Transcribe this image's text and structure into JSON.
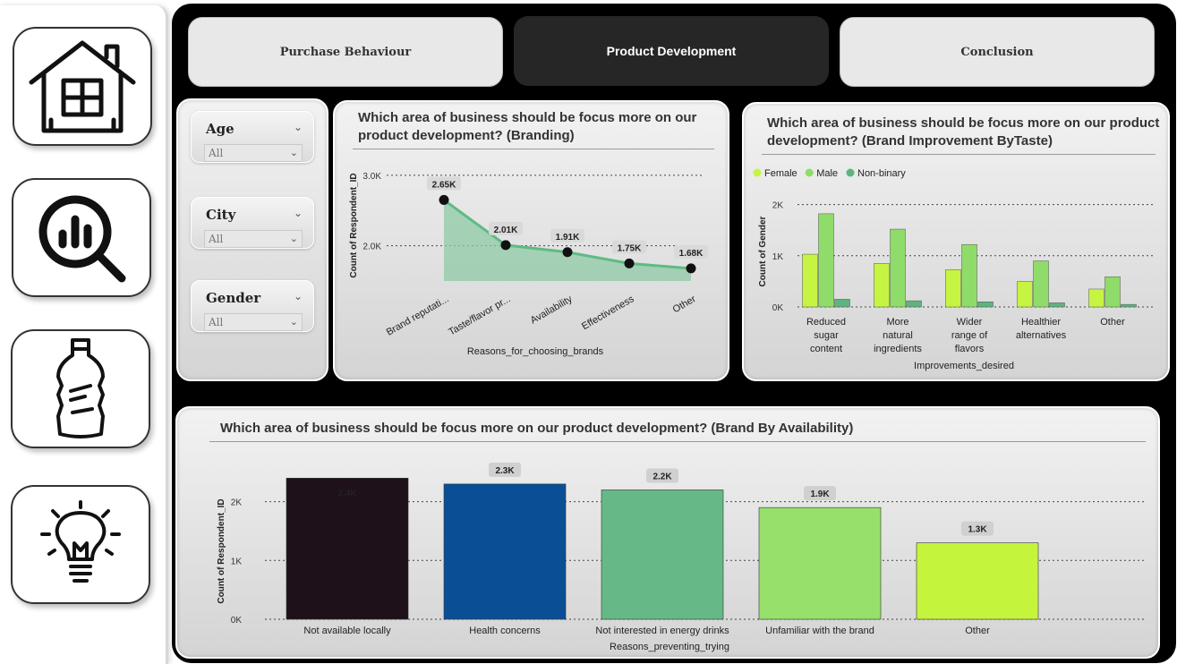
{
  "nav": [
    {
      "id": "home",
      "icon": "house-icon"
    },
    {
      "id": "analysis",
      "icon": "chart-magnifier-icon"
    },
    {
      "id": "product",
      "icon": "bottle-icon"
    },
    {
      "id": "insights",
      "icon": "lightbulb-icon"
    }
  ],
  "tabs": {
    "purchase": "Purchase Behaviour",
    "product": "Product Development",
    "conclusion": "Conclusion"
  },
  "filters": {
    "age": {
      "label": "Age",
      "value": "All"
    },
    "city": {
      "label": "City",
      "value": "All"
    },
    "gender": {
      "label": "Gender",
      "value": "All"
    }
  },
  "charts": {
    "branding": {
      "title_line1": "Which area of business should be focus more on our",
      "title_line2": "product development? (Branding)"
    },
    "taste": {
      "title_line1": "Which area of business should be focus more on our product",
      "title_line2": "development? (Brand Improvement ByTaste)"
    },
    "availability": {
      "title": "Which area of business should be focus more on our product development? (Brand By Availability)"
    }
  },
  "chart_data": [
    {
      "type": "area",
      "title": "Which area of business should be focus more on our product development? (Branding)",
      "xlabel": "Reasons_for_choosing_brands",
      "ylabel": "Count of Respondent_ID",
      "categories": [
        "Brand reputati...",
        "Taste/flavor pr...",
        "Availability",
        "Effectiveness",
        "Other"
      ],
      "values": [
        2650,
        2010,
        1910,
        1750,
        1680
      ],
      "data_labels": [
        "2.65K",
        "2.01K",
        "1.91K",
        "1.75K",
        "1.68K"
      ],
      "yticks": [
        "3.0K",
        "2.0K"
      ],
      "ytick_values": [
        3000,
        2000
      ],
      "ylim": [
        1400,
        3150
      ],
      "grid": true,
      "colors": {
        "fill": "#8fcaa6",
        "line": "#5fba84",
        "point": "#111111"
      }
    },
    {
      "type": "bar",
      "title": "Which area of business should be focus more on our product development? (Brand Improvement ByTaste)",
      "xlabel": "Improvements_desired",
      "ylabel": "Count of Gender",
      "categories": [
        [
          "Reduced",
          "sugar",
          "content"
        ],
        [
          "More",
          "natural",
          "ingredients"
        ],
        [
          "Wider",
          "range of",
          "flavors"
        ],
        [
          "Healthier",
          "alternatives"
        ],
        [
          "Other"
        ]
      ],
      "series": [
        {
          "name": "Female",
          "color": "#c5f542",
          "values": [
            1030,
            850,
            730,
            500,
            350
          ]
        },
        {
          "name": "Male",
          "color": "#8fdc6a",
          "values": [
            1820,
            1520,
            1220,
            900,
            590
          ]
        },
        {
          "name": "Non-binary",
          "color": "#5fb37f",
          "values": [
            150,
            120,
            100,
            80,
            50
          ]
        }
      ],
      "yticks": [
        "2K",
        "1K",
        "0K"
      ],
      "ytick_values": [
        2000,
        1000,
        0
      ],
      "ylim": [
        0,
        2200
      ],
      "legend": "top-left",
      "grid": true
    },
    {
      "type": "bar",
      "title": "Which area of business should be focus more on our product development? (Brand By Availability)",
      "xlabel": "Reasons_preventing_trying",
      "ylabel": "Count of Respondent_ID",
      "categories": [
        "Not available locally",
        "Health concerns",
        "Not interested in energy drinks",
        "Unfamiliar with the brand",
        "Other"
      ],
      "values": [
        2400,
        2300,
        2200,
        1900,
        1300
      ],
      "data_labels": [
        "2.4K",
        "2.3K",
        "2.2K",
        "1.9K",
        "1.3K"
      ],
      "colors": [
        "#1e1119",
        "#0a4f96",
        "#66b987",
        "#97e06c",
        "#c4f53c"
      ],
      "yticks": [
        "2K",
        "1K",
        "0K"
      ],
      "ytick_values": [
        2000,
        1000,
        0
      ],
      "ylim": [
        0,
        2600
      ],
      "grid": true
    }
  ]
}
